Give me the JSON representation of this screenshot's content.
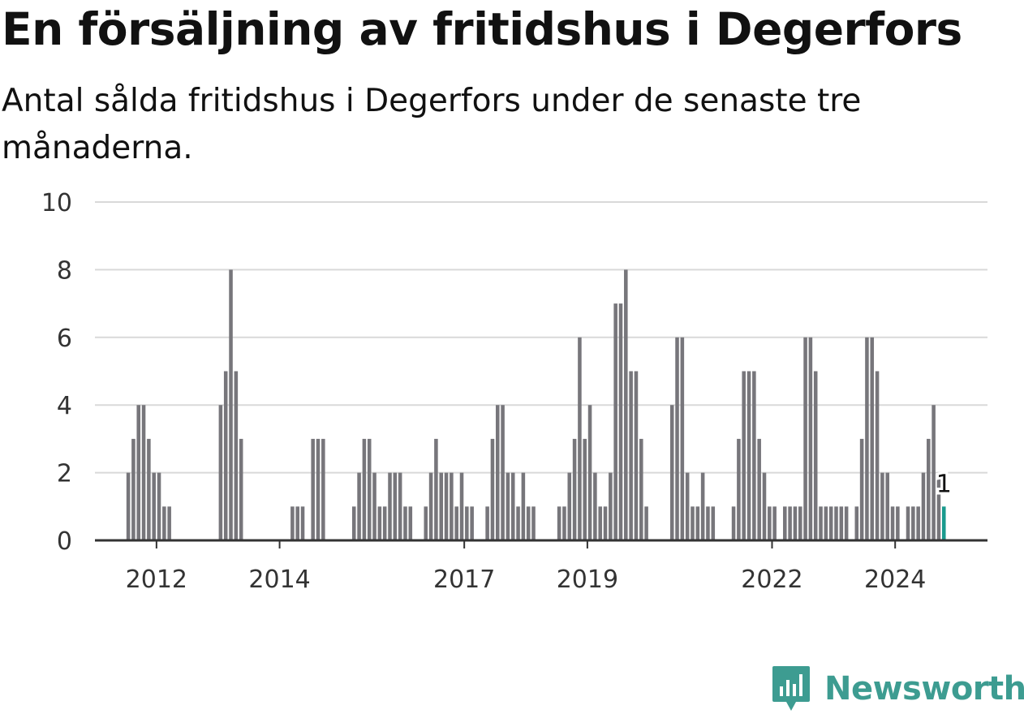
{
  "title": "En försäljning av fritidshus i Degerfors",
  "subtitle": "Antal sålda fritidshus i Degerfors under de senaste tre månaderna.",
  "brand": {
    "name": "Newsworthy",
    "logo_icon": "bar-chart-speech-bubble-icon"
  },
  "colors": {
    "bar": "#77767b",
    "highlight": "#1a9a8e",
    "brand": "#3d9c91"
  },
  "chart_data": {
    "type": "bar",
    "x_start": "2011-01",
    "x_end": "2025-07",
    "ylim": [
      0,
      10
    ],
    "yticks": [
      0,
      2,
      4,
      6,
      8,
      10
    ],
    "xticks": [
      {
        "label": "2012",
        "x": "2012-01"
      },
      {
        "label": "2014",
        "x": "2014-01"
      },
      {
        "label": "2017",
        "x": "2017-01"
      },
      {
        "label": "2019",
        "x": "2019-01"
      },
      {
        "label": "2022",
        "x": "2022-01"
      },
      {
        "label": "2024",
        "x": "2024-01"
      }
    ],
    "grid": true,
    "bars": [
      {
        "x": "2011-07",
        "y": 2
      },
      {
        "x": "2011-08",
        "y": 3
      },
      {
        "x": "2011-09",
        "y": 4
      },
      {
        "x": "2011-10",
        "y": 4
      },
      {
        "x": "2011-11",
        "y": 3
      },
      {
        "x": "2011-12",
        "y": 2
      },
      {
        "x": "2012-01",
        "y": 2
      },
      {
        "x": "2012-02",
        "y": 1
      },
      {
        "x": "2012-03",
        "y": 1
      },
      {
        "x": "2013-01",
        "y": 4
      },
      {
        "x": "2013-02",
        "y": 5
      },
      {
        "x": "2013-03",
        "y": 8
      },
      {
        "x": "2013-04",
        "y": 5
      },
      {
        "x": "2013-05",
        "y": 3
      },
      {
        "x": "2014-03",
        "y": 1
      },
      {
        "x": "2014-04",
        "y": 1
      },
      {
        "x": "2014-05",
        "y": 1
      },
      {
        "x": "2014-07",
        "y": 3
      },
      {
        "x": "2014-08",
        "y": 3
      },
      {
        "x": "2014-09",
        "y": 3
      },
      {
        "x": "2015-03",
        "y": 1
      },
      {
        "x": "2015-04",
        "y": 2
      },
      {
        "x": "2015-05",
        "y": 3
      },
      {
        "x": "2015-06",
        "y": 3
      },
      {
        "x": "2015-07",
        "y": 2
      },
      {
        "x": "2015-08",
        "y": 1
      },
      {
        "x": "2015-09",
        "y": 1
      },
      {
        "x": "2015-10",
        "y": 2
      },
      {
        "x": "2015-11",
        "y": 2
      },
      {
        "x": "2015-12",
        "y": 2
      },
      {
        "x": "2016-01",
        "y": 1
      },
      {
        "x": "2016-02",
        "y": 1
      },
      {
        "x": "2016-05",
        "y": 1
      },
      {
        "x": "2016-06",
        "y": 2
      },
      {
        "x": "2016-07",
        "y": 3
      },
      {
        "x": "2016-08",
        "y": 2
      },
      {
        "x": "2016-09",
        "y": 2
      },
      {
        "x": "2016-10",
        "y": 2
      },
      {
        "x": "2016-11",
        "y": 1
      },
      {
        "x": "2016-12",
        "y": 2
      },
      {
        "x": "2017-01",
        "y": 1
      },
      {
        "x": "2017-02",
        "y": 1
      },
      {
        "x": "2017-05",
        "y": 1
      },
      {
        "x": "2017-06",
        "y": 3
      },
      {
        "x": "2017-07",
        "y": 4
      },
      {
        "x": "2017-08",
        "y": 4
      },
      {
        "x": "2017-09",
        "y": 2
      },
      {
        "x": "2017-10",
        "y": 2
      },
      {
        "x": "2017-11",
        "y": 1
      },
      {
        "x": "2017-12",
        "y": 2
      },
      {
        "x": "2018-01",
        "y": 1
      },
      {
        "x": "2018-02",
        "y": 1
      },
      {
        "x": "2018-07",
        "y": 1
      },
      {
        "x": "2018-08",
        "y": 1
      },
      {
        "x": "2018-09",
        "y": 2
      },
      {
        "x": "2018-10",
        "y": 3
      },
      {
        "x": "2018-11",
        "y": 6
      },
      {
        "x": "2018-12",
        "y": 3
      },
      {
        "x": "2019-01",
        "y": 4
      },
      {
        "x": "2019-02",
        "y": 2
      },
      {
        "x": "2019-03",
        "y": 1
      },
      {
        "x": "2019-04",
        "y": 1
      },
      {
        "x": "2019-05",
        "y": 2
      },
      {
        "x": "2019-06",
        "y": 7
      },
      {
        "x": "2019-07",
        "y": 7
      },
      {
        "x": "2019-08",
        "y": 8
      },
      {
        "x": "2019-09",
        "y": 5
      },
      {
        "x": "2019-10",
        "y": 5
      },
      {
        "x": "2019-11",
        "y": 3
      },
      {
        "x": "2019-12",
        "y": 1
      },
      {
        "x": "2020-05",
        "y": 4
      },
      {
        "x": "2020-06",
        "y": 6
      },
      {
        "x": "2020-07",
        "y": 6
      },
      {
        "x": "2020-08",
        "y": 2
      },
      {
        "x": "2020-09",
        "y": 1
      },
      {
        "x": "2020-10",
        "y": 1
      },
      {
        "x": "2020-11",
        "y": 2
      },
      {
        "x": "2020-12",
        "y": 1
      },
      {
        "x": "2021-01",
        "y": 1
      },
      {
        "x": "2021-05",
        "y": 1
      },
      {
        "x": "2021-06",
        "y": 3
      },
      {
        "x": "2021-07",
        "y": 5
      },
      {
        "x": "2021-08",
        "y": 5
      },
      {
        "x": "2021-09",
        "y": 5
      },
      {
        "x": "2021-10",
        "y": 3
      },
      {
        "x": "2021-11",
        "y": 2
      },
      {
        "x": "2021-12",
        "y": 1
      },
      {
        "x": "2022-01",
        "y": 1
      },
      {
        "x": "2022-03",
        "y": 1
      },
      {
        "x": "2022-04",
        "y": 1
      },
      {
        "x": "2022-05",
        "y": 1
      },
      {
        "x": "2022-06",
        "y": 1
      },
      {
        "x": "2022-07",
        "y": 6
      },
      {
        "x": "2022-08",
        "y": 6
      },
      {
        "x": "2022-09",
        "y": 5
      },
      {
        "x": "2022-10",
        "y": 1
      },
      {
        "x": "2022-11",
        "y": 1
      },
      {
        "x": "2022-12",
        "y": 1
      },
      {
        "x": "2023-01",
        "y": 1
      },
      {
        "x": "2023-02",
        "y": 1
      },
      {
        "x": "2023-03",
        "y": 1
      },
      {
        "x": "2023-05",
        "y": 1
      },
      {
        "x": "2023-06",
        "y": 3
      },
      {
        "x": "2023-07",
        "y": 6
      },
      {
        "x": "2023-08",
        "y": 6
      },
      {
        "x": "2023-09",
        "y": 5
      },
      {
        "x": "2023-10",
        "y": 2
      },
      {
        "x": "2023-11",
        "y": 2
      },
      {
        "x": "2023-12",
        "y": 1
      },
      {
        "x": "2024-01",
        "y": 1
      },
      {
        "x": "2024-03",
        "y": 1
      },
      {
        "x": "2024-04",
        "y": 1
      },
      {
        "x": "2024-05",
        "y": 1
      },
      {
        "x": "2024-06",
        "y": 2
      },
      {
        "x": "2024-07",
        "y": 3
      },
      {
        "x": "2024-08",
        "y": 4
      },
      {
        "x": "2024-09",
        "y": 2
      },
      {
        "x": "2024-10",
        "y": 1,
        "highlight": true
      }
    ],
    "annotation": {
      "x": "2024-10",
      "label": "1"
    }
  }
}
